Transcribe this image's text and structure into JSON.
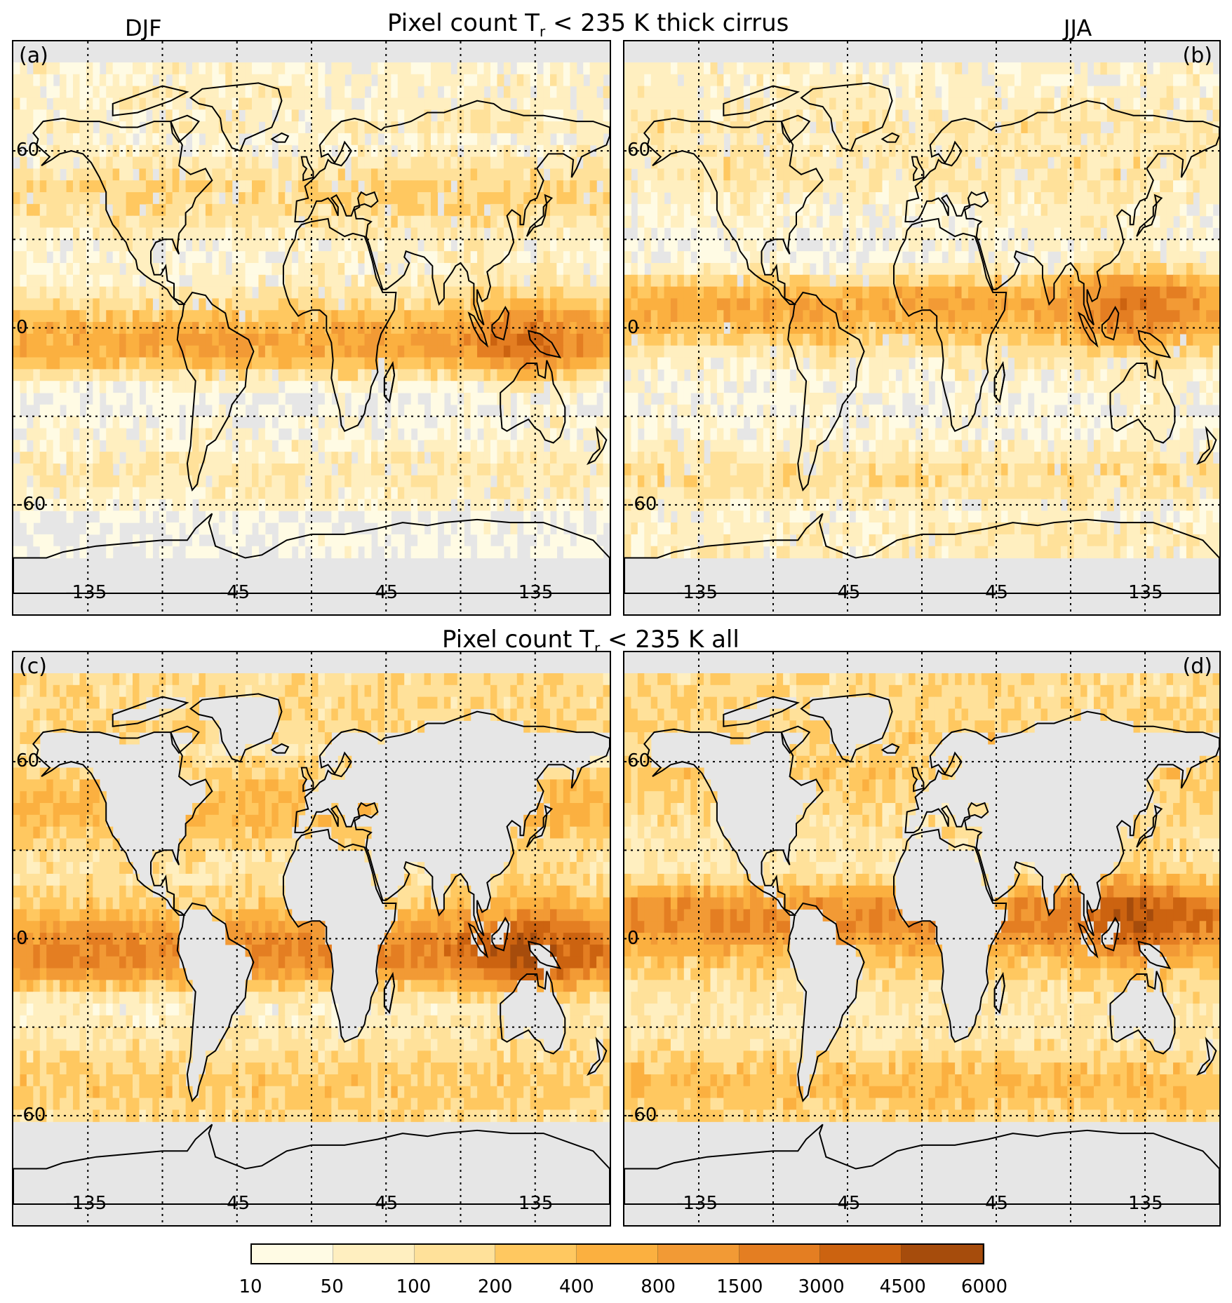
{
  "titles": {
    "top": "Pixel count T_r < 235 K  thick cirrus",
    "top_main": "Pixel count T",
    "top_sub": "r",
    "top_rest": " < 235 K  thick cirrus",
    "bottom_main": "Pixel count T",
    "bottom_sub": "r",
    "bottom_rest": " < 235 K  all",
    "season_left": "DJF",
    "season_right": "JJA"
  },
  "panels": [
    {
      "label": "(a)",
      "season": "DJF",
      "category": "thick cirrus",
      "label_side": "left"
    },
    {
      "label": "(b)",
      "season": "JJA",
      "category": "thick cirrus",
      "label_side": "right"
    },
    {
      "label": "(c)",
      "season": "DJF",
      "category": "all",
      "label_side": "left"
    },
    {
      "label": "(d)",
      "season": "JJA",
      "category": "all",
      "label_side": "right"
    }
  ],
  "axes": {
    "lat_ticks": [
      "60",
      "0",
      "-60"
    ],
    "lon_ticks": [
      "-135",
      "-45",
      "45",
      "135"
    ]
  },
  "colorbar": {
    "ticks": [
      "10",
      "50",
      "100",
      "200",
      "400",
      "800",
      "1500",
      "3000",
      "4500",
      "6000"
    ],
    "colors": [
      "#fffbe4",
      "#ffefc0",
      "#ffe19a",
      "#ffc860",
      "#fbb040",
      "#f29a35",
      "#e47e22",
      "#cc6310",
      "#a64c0c"
    ],
    "no_data_color": "#e6e6e6"
  },
  "chart_data": {
    "type": "heatmap",
    "title": "Pixel count T_r < 235 K",
    "panels": [
      "(a) DJF thick cirrus",
      "(b) JJA thick cirrus",
      "(c) DJF all",
      "(d) JJA all"
    ],
    "xlabel": "",
    "ylabel": "",
    "x_ticks": [
      -135,
      -45,
      45,
      135
    ],
    "y_ticks": [
      60,
      0,
      -60
    ],
    "colorbar_levels": [
      10,
      50,
      100,
      200,
      400,
      800,
      1500,
      3000,
      4500,
      6000
    ]
  }
}
